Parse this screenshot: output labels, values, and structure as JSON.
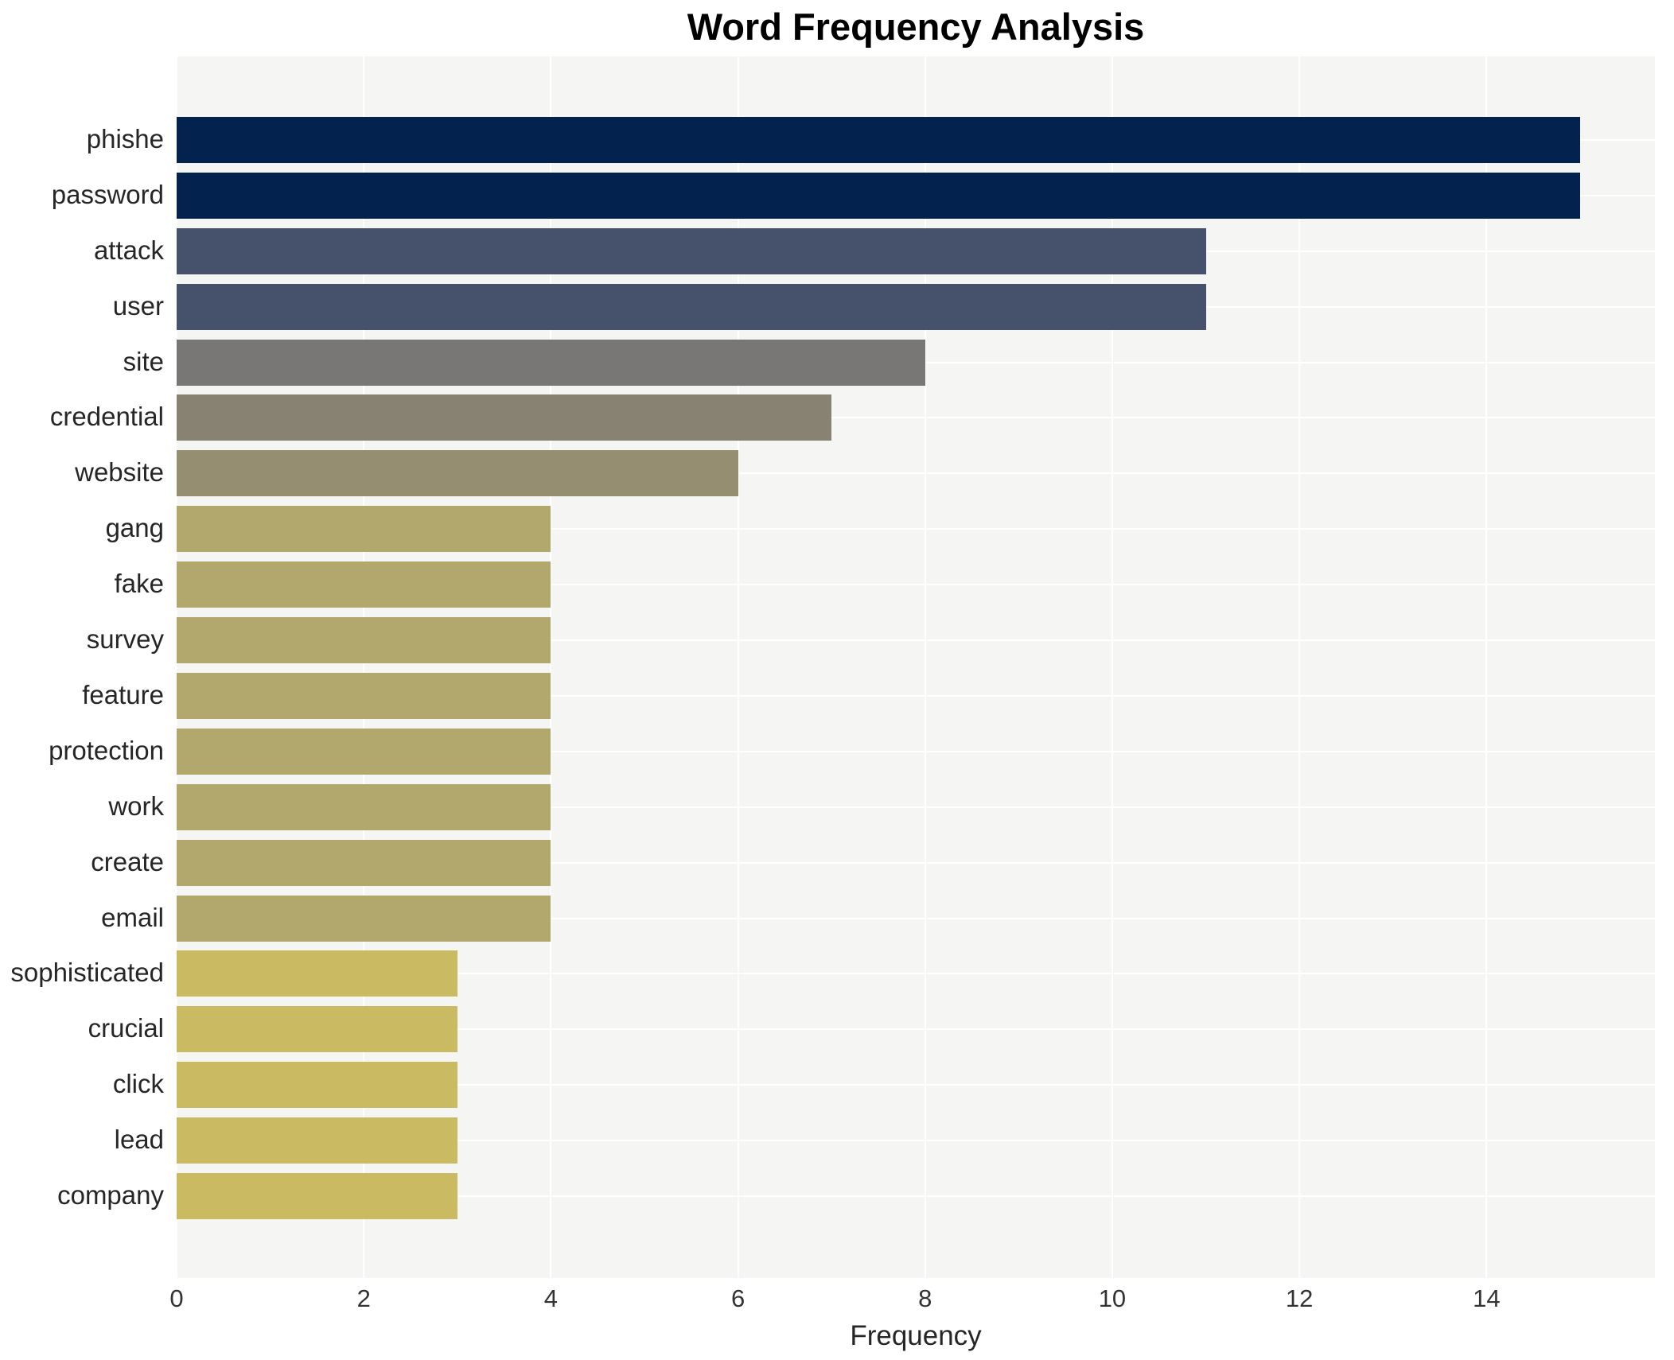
{
  "title": "Word Frequency Analysis",
  "chart_data": {
    "type": "bar",
    "orientation": "horizontal",
    "title": "Word Frequency Analysis",
    "xlabel": "Frequency",
    "ylabel": "",
    "categories": [
      "phishe",
      "password",
      "attack",
      "user",
      "site",
      "credential",
      "website",
      "gang",
      "fake",
      "survey",
      "feature",
      "protection",
      "work",
      "create",
      "email",
      "sophisticated",
      "crucial",
      "click",
      "lead",
      "company"
    ],
    "values": [
      15,
      15,
      11,
      11,
      8,
      7,
      6,
      4,
      4,
      4,
      4,
      4,
      4,
      4,
      4,
      3,
      3,
      3,
      3,
      3
    ],
    "bar_colors": [
      "#03234e",
      "#03234e",
      "#46516c",
      "#46516c",
      "#787776",
      "#878271",
      "#958e70",
      "#b2a86d",
      "#b2a86d",
      "#b2a86d",
      "#b2a86d",
      "#b2a86d",
      "#b2a86d",
      "#b2a86d",
      "#b2a86d",
      "#cabb62",
      "#cabb62",
      "#cabb62",
      "#cabb62",
      "#cabb62"
    ],
    "xlim": [
      0,
      15.8
    ],
    "xticks": [
      0,
      2,
      4,
      6,
      8,
      10,
      12,
      14
    ],
    "grid": "white vertical lines at even ticks, white horizontal lines at category centers",
    "legend": "none",
    "value_labels": "none",
    "plot_background": "#f5f5f3",
    "figure_background": "#ffffff",
    "title_color": "#000000",
    "tick_label_color": "#333333"
  }
}
